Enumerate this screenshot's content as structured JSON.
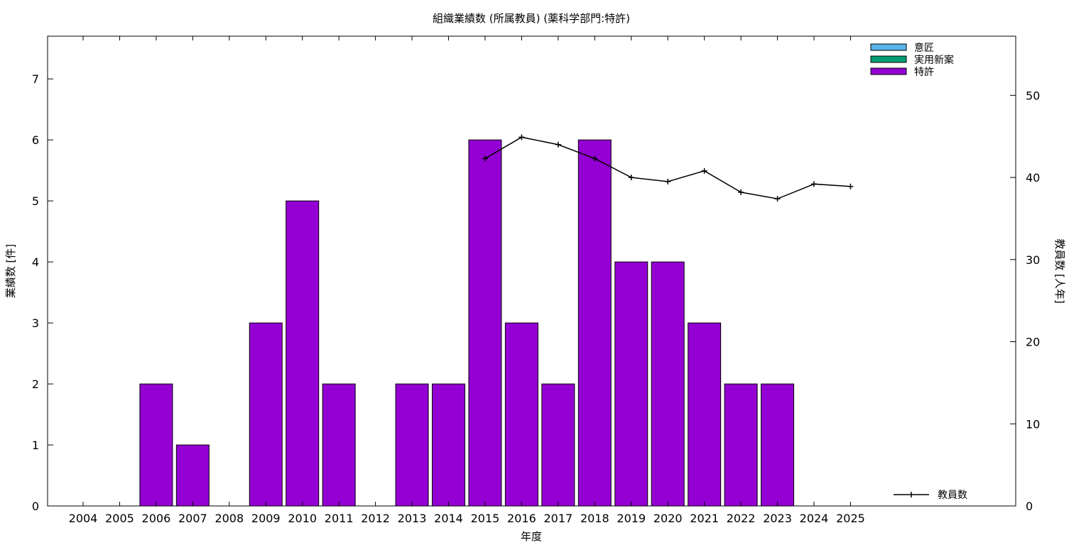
{
  "chart_data": {
    "type": "bar",
    "title": "組織業績数 (所属教員) (薬科学部門:特許)",
    "xlabel": "年度",
    "ylabel": "業績数 [件]",
    "y2label": "教員数 [人年]",
    "categories": [
      "2004",
      "2005",
      "2006",
      "2007",
      "2008",
      "2009",
      "2010",
      "2011",
      "2012",
      "2013",
      "2014",
      "2015",
      "2016",
      "2017",
      "2018",
      "2019",
      "2020",
      "2021",
      "2022",
      "2023",
      "2024",
      "2025"
    ],
    "ylim": [
      0,
      7.7
    ],
    "y2lim": [
      0,
      57.2
    ],
    "yticks": [
      0,
      1,
      2,
      3,
      4,
      5,
      6,
      7
    ],
    "y2ticks": [
      0,
      10,
      20,
      30,
      40,
      50
    ],
    "grid": false,
    "stacked": true,
    "series": [
      {
        "name": "意匠",
        "type": "bar",
        "color": "#56b4e9",
        "values": [
          0,
          0,
          0,
          0,
          0,
          0,
          0,
          0,
          0,
          0,
          0,
          0,
          0,
          0,
          0,
          0,
          0,
          0,
          0,
          0,
          0,
          0
        ]
      },
      {
        "name": "実用新案",
        "type": "bar",
        "color": "#009e73",
        "values": [
          0,
          0,
          0,
          0,
          0,
          0,
          0,
          0,
          0,
          0,
          0,
          0,
          0,
          0,
          0,
          0,
          0,
          0,
          0,
          0,
          0,
          0
        ]
      },
      {
        "name": "特許",
        "type": "bar",
        "color": "#9400d3",
        "values": [
          0,
          0,
          2,
          1,
          0,
          3,
          5,
          2,
          0,
          2,
          2,
          6,
          3,
          2,
          6,
          4,
          4,
          3,
          2,
          2,
          0,
          0
        ]
      },
      {
        "name": "教員数",
        "type": "line",
        "axis": "y2",
        "color": "#000000",
        "values": [
          null,
          null,
          null,
          null,
          null,
          null,
          null,
          null,
          null,
          null,
          null,
          42.3,
          44.9,
          44.0,
          42.3,
          40.0,
          39.5,
          40.8,
          38.2,
          37.4,
          39.2,
          38.9
        ]
      }
    ],
    "legend_position": "top-right"
  }
}
